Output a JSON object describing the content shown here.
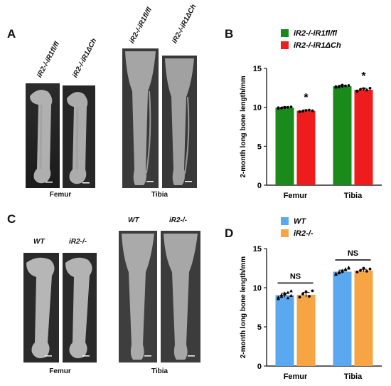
{
  "panels": {
    "a": {
      "letter": "A",
      "femur_labels": [
        "iR2-/-iR1fl/fl",
        "iR2-/-iR1ΔCh"
      ],
      "tibia_labels": [
        "iR2-/-iR1fl/fl",
        "iR2-/-iR1ΔCh"
      ],
      "femur_caption": "Femur",
      "tibia_caption": "Tibia"
    },
    "c": {
      "letter": "C",
      "femur_labels": [
        "WT",
        "iR2-/-"
      ],
      "tibia_labels": [
        "WT",
        "iR2-/-"
      ],
      "femur_caption": "Femur",
      "tibia_caption": "Tibia"
    },
    "b": {
      "letter": "B"
    },
    "d": {
      "letter": "D"
    }
  },
  "chart_data": [
    {
      "type": "bar",
      "panel": "B",
      "categories": [
        "Femur",
        "Tibia"
      ],
      "ylabel": "2-month long bone length/mm",
      "ylim": [
        0,
        15
      ],
      "yticks": [
        0,
        5,
        10,
        15
      ],
      "legend_position": "top",
      "series": [
        {
          "name": "iR2-/-iR1fl/fl",
          "color": "#1a8a1a",
          "values": [
            9.95,
            12.7
          ],
          "errors": [
            0.1,
            0.12
          ],
          "points": [
            [
              9.85,
              9.9,
              9.95,
              10.0,
              10.05,
              9.95,
              9.9,
              10.0
            ],
            [
              12.55,
              12.6,
              12.7,
              12.75,
              12.8,
              12.65,
              12.7,
              12.85
            ]
          ]
        },
        {
          "name": "iR2-/-iR1ΔCh",
          "color": "#ee1c1c",
          "values": [
            9.55,
            12.25
          ],
          "errors": [
            0.12,
            0.18
          ],
          "points": [
            [
              9.45,
              9.5,
              9.6,
              9.65,
              9.55,
              9.4
            ],
            [
              12.0,
              12.3,
              12.4,
              12.2,
              12.45,
              12.1
            ]
          ]
        }
      ],
      "annotations": [
        "*",
        "*"
      ]
    },
    {
      "type": "bar",
      "panel": "D",
      "categories": [
        "Femur",
        "Tibia"
      ],
      "ylabel": "2-month long bone length/mm",
      "ylim": [
        0,
        15
      ],
      "yticks": [
        0,
        5,
        10,
        15
      ],
      "legend_position": "top",
      "series": [
        {
          "name": "WT",
          "color": "#5aa8f0",
          "values": [
            9.05,
            12.05
          ],
          "errors": [
            0.25,
            0.2
          ],
          "points": [
            [
              8.6,
              8.9,
              9.2,
              9.4,
              9.6,
              8.8,
              9.1,
              9.3,
              8.7,
              9.0
            ],
            [
              11.7,
              11.9,
              12.1,
              12.3,
              12.5,
              11.8,
              12.0,
              12.2,
              12.4,
              12.6
            ]
          ]
        },
        {
          "name": "iR2-/-",
          "color": "#f7a544",
          "values": [
            9.1,
            12.2
          ],
          "errors": [
            0.3,
            0.15
          ],
          "points": [
            [
              8.8,
              9.2,
              9.5,
              8.9,
              9.6
            ],
            [
              12.0,
              12.2,
              12.5,
              12.1,
              12.4
            ]
          ]
        }
      ],
      "annotations": [
        "NS",
        "NS"
      ]
    }
  ]
}
